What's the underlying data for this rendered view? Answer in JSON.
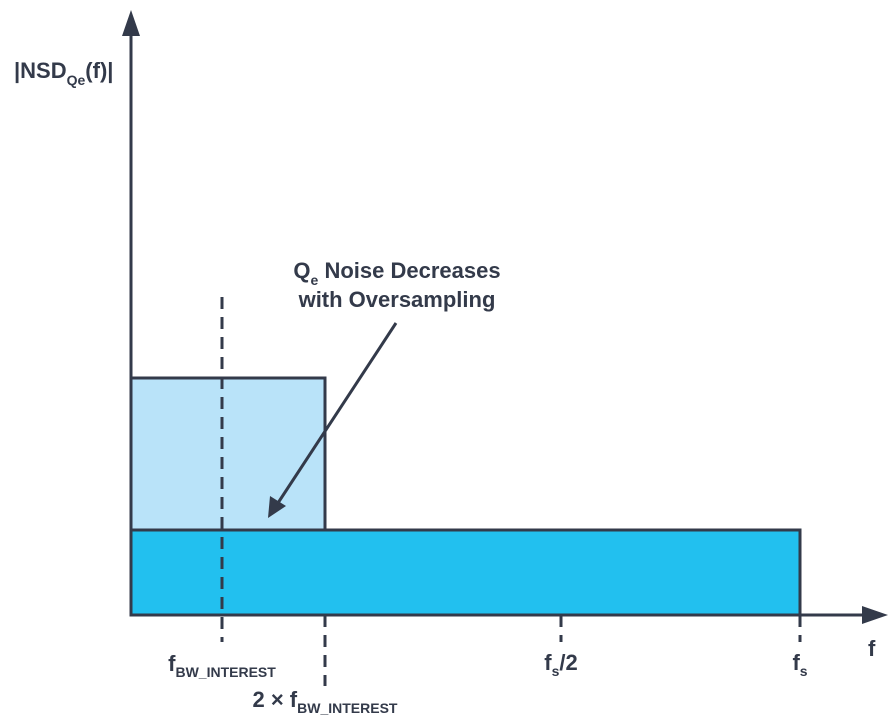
{
  "y_axis": {
    "label_prefix": "|NSD",
    "label_subscript": "Qe",
    "label_suffix": "(f)|"
  },
  "x_axis": {
    "label": "f"
  },
  "callout": {
    "line1_main": "Q",
    "line1_sub": "e",
    "line1_rest": " Noise Decreases",
    "line2": "with Oversampling"
  },
  "markers": {
    "f_bw": {
      "main": "f",
      "sub": "BW_INTEREST"
    },
    "two_f_bw": {
      "prefix": "2 × f",
      "sub": "BW_INTEREST"
    },
    "fs_half": {
      "main": "f",
      "sub": "s",
      "suffix": "/2"
    },
    "fs": {
      "main": "f",
      "sub": "s"
    }
  },
  "colors": {
    "axis": "#333a4a",
    "oversampled_band": "#22c0ef",
    "nyquist_band": "#b9e3f9",
    "outline": "#333a4a"
  }
}
